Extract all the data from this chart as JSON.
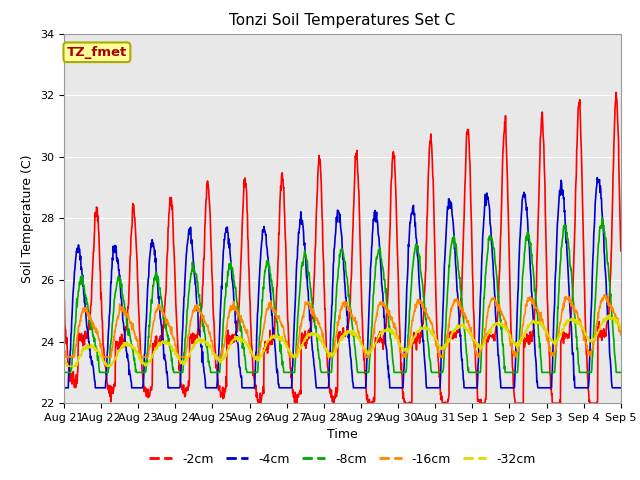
{
  "title": "Tonzi Soil Temperatures Set C",
  "xlabel": "Time",
  "ylabel": "Soil Temperature (C)",
  "ylim": [
    22,
    34
  ],
  "line_colors": [
    "#ff0000",
    "#0000cc",
    "#00aa00",
    "#ff8800",
    "#dddd00"
  ],
  "line_labels": [
    "-2cm",
    "-4cm",
    "-8cm",
    "-16cm",
    "-32cm"
  ],
  "xtick_labels": [
    "Aug 21",
    "Aug 22",
    "Aug 23",
    "Aug 24",
    "Aug 25",
    "Aug 26",
    "Aug 27",
    "Aug 28",
    "Aug 29",
    "Aug 30",
    "Aug 31",
    "Sep 1",
    "Sep 2",
    "Sep 3",
    "Sep 4",
    "Sep 5"
  ],
  "annotation_text": "TZ_fmet",
  "annotation_bg": "#ffff99",
  "annotation_border": "#aaaa00",
  "bg_color": "#e8e8e8",
  "title_fontsize": 11,
  "axis_fontsize": 9,
  "tick_fontsize": 8,
  "legend_fontsize": 9
}
